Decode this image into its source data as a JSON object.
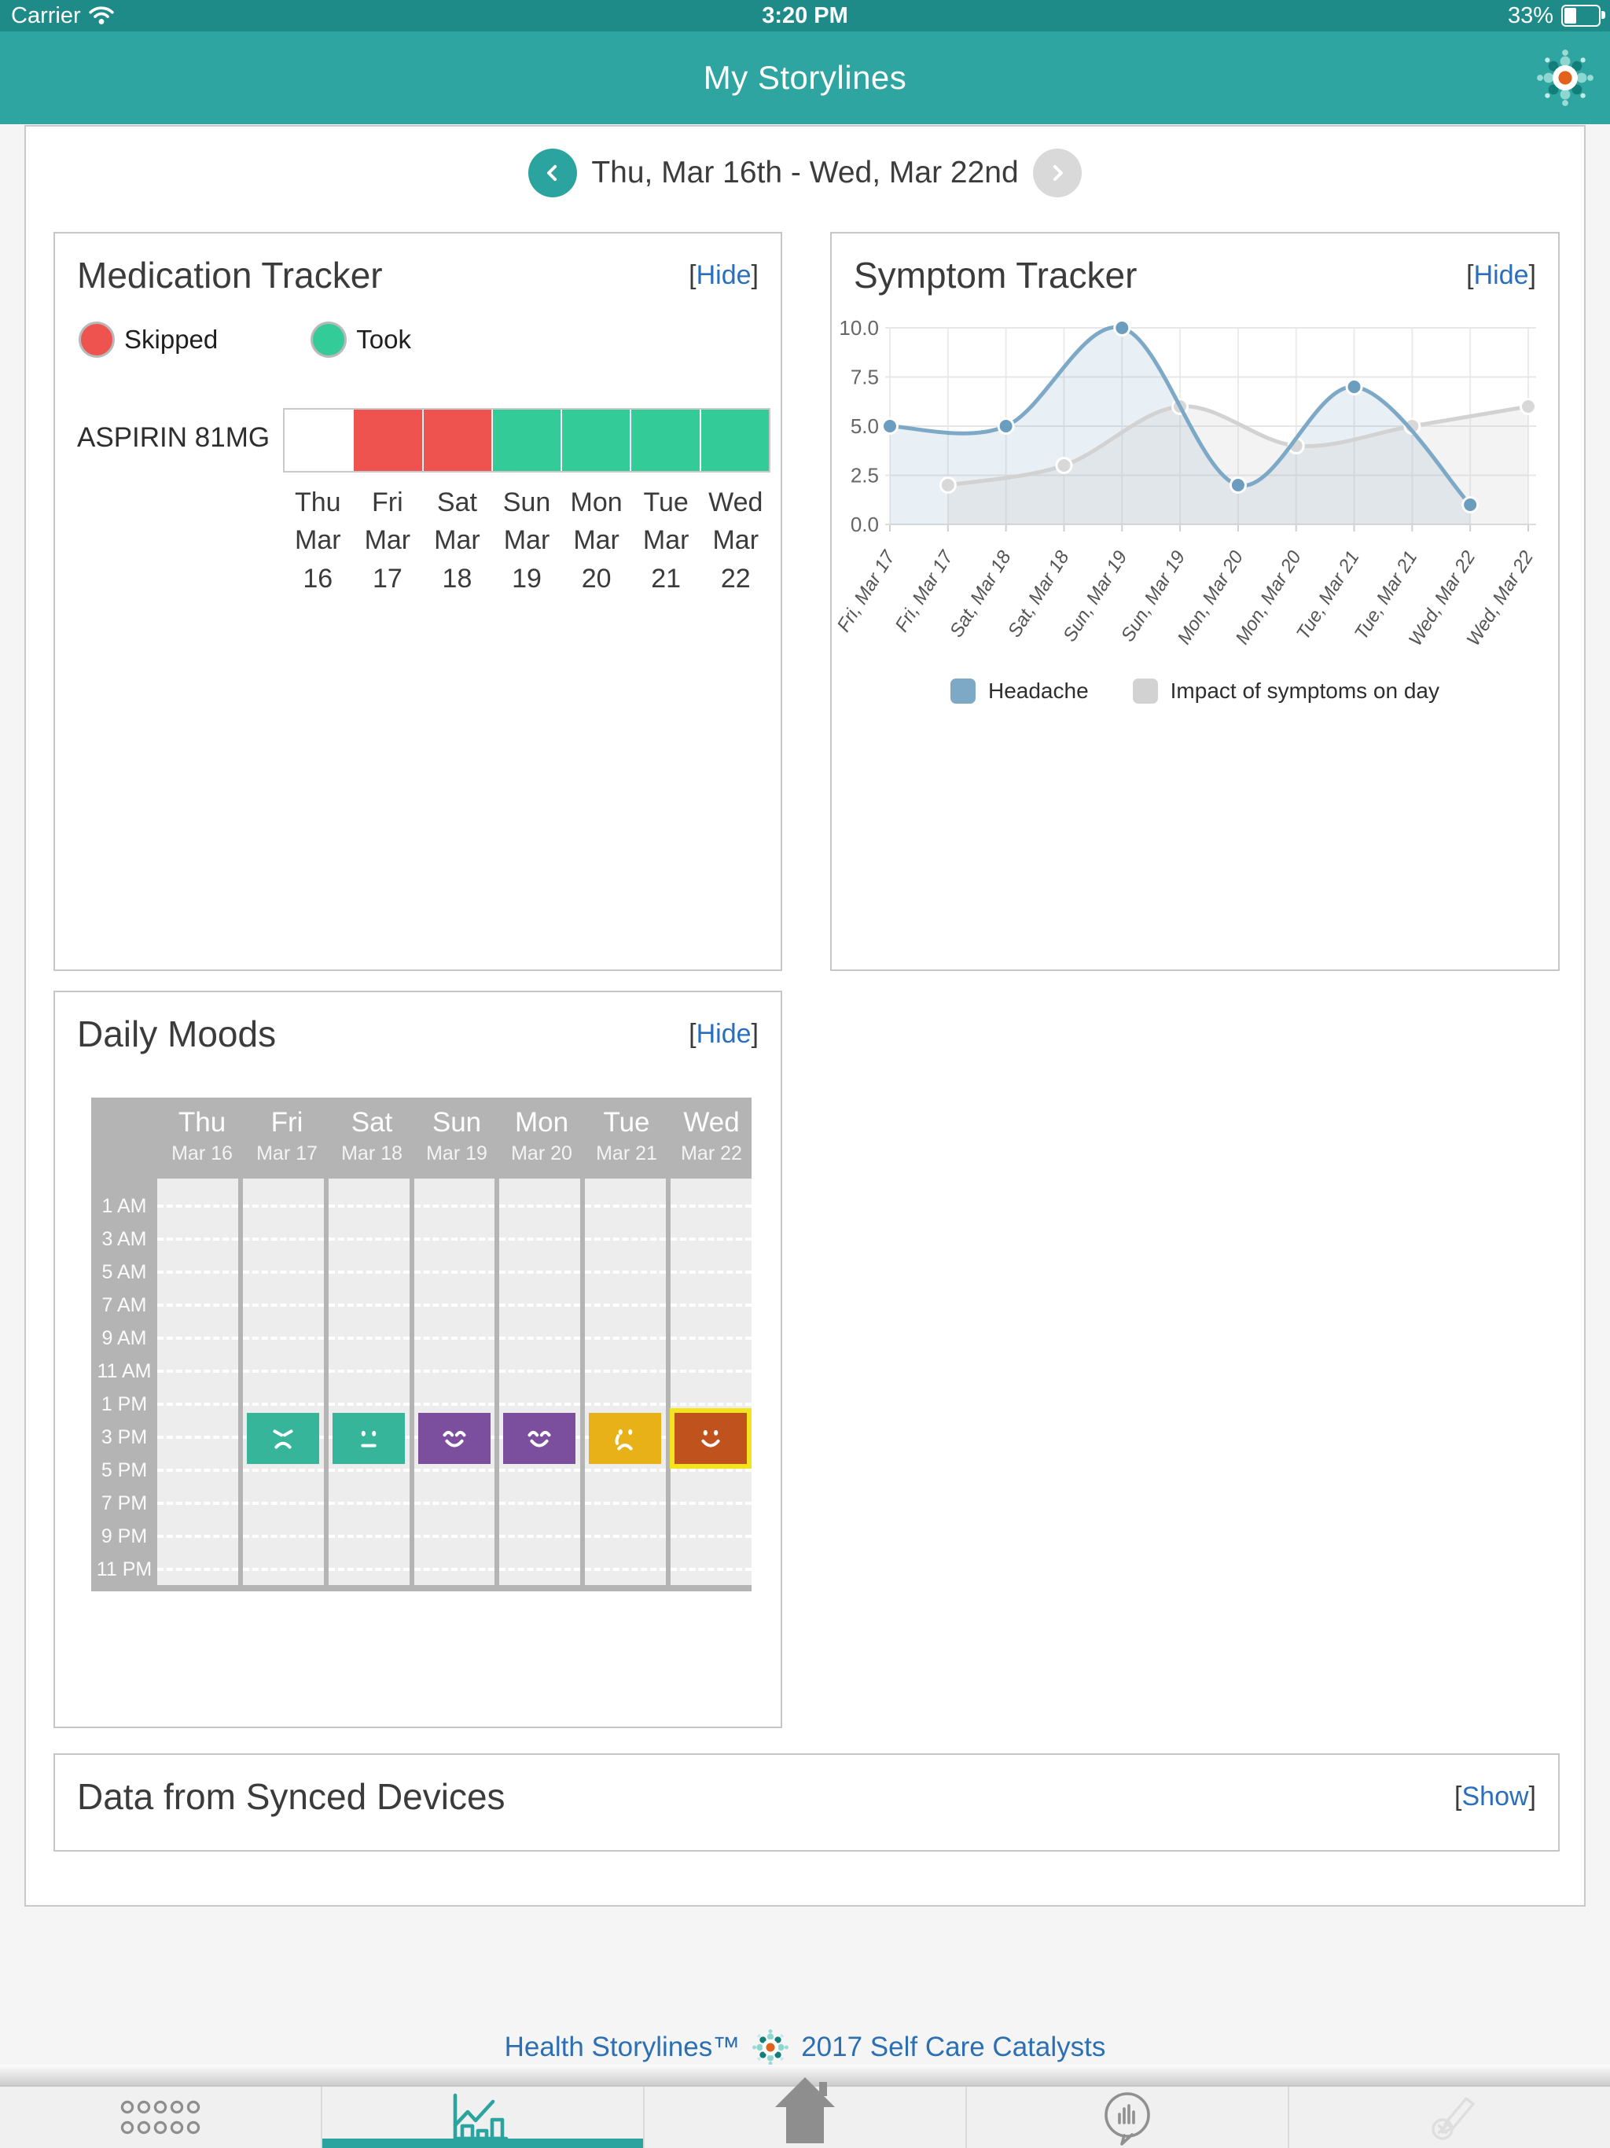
{
  "status_bar": {
    "carrier": "Carrier",
    "time": "3:20 PM",
    "battery_percent": "33%"
  },
  "header": {
    "title": "My Storylines"
  },
  "date_nav": {
    "label": "Thu, Mar 16th - Wed, Mar 22nd"
  },
  "medication_tracker": {
    "title": "Medication Tracker",
    "hide": {
      "open": "[",
      "label": "Hide",
      "close": "]"
    },
    "legend": [
      {
        "label": "Skipped",
        "color": "#ef5350"
      },
      {
        "label": "Took",
        "color": "#33cb98"
      }
    ],
    "status_colors": {
      "none": "#ffffff",
      "skipped": "#ef5350",
      "took": "#33cb98"
    },
    "days": [
      [
        "Thu",
        "Mar",
        "16"
      ],
      [
        "Fri",
        "Mar",
        "17"
      ],
      [
        "Sat",
        "Mar",
        "18"
      ],
      [
        "Sun",
        "Mar",
        "19"
      ],
      [
        "Mon",
        "Mar",
        "20"
      ],
      [
        "Tue",
        "Mar",
        "21"
      ],
      [
        "Wed",
        "Mar",
        "22"
      ]
    ],
    "rows": [
      {
        "name": "ASPIRIN 81MG",
        "statuses": [
          "none",
          "skipped",
          "skipped",
          "took",
          "took",
          "took",
          "took"
        ]
      }
    ]
  },
  "symptom_tracker": {
    "title": "Symptom Tracker",
    "hide": {
      "open": "[",
      "label": "Hide",
      "close": "]"
    }
  },
  "chart_data": {
    "type": "line",
    "title": "Symptom Tracker",
    "xlabel": "",
    "ylabel": "",
    "ylim": [
      0,
      10
    ],
    "grid": true,
    "legend_position": "bottom",
    "yticks": [
      {
        "v": 0,
        "label": "0.0"
      },
      {
        "v": 2.5,
        "label": "2.5"
      },
      {
        "v": 5,
        "label": "5.0"
      },
      {
        "v": 7.5,
        "label": "7.5"
      },
      {
        "v": 10,
        "label": "10.0"
      }
    ],
    "x_labels": [
      "Fri, Mar 17",
      "Fri, Mar 17",
      "Sat, Mar 18",
      "Sat, Mar 18",
      "Sun, Mar 19",
      "Sun, Mar 19",
      "Mon, Mar 20",
      "Mon, Mar 20",
      "Tue, Mar 21",
      "Tue, Mar 21",
      "Wed, Mar 22",
      "Wed, Mar 22"
    ],
    "series": [
      {
        "name": "Headache",
        "color": "#7da9c6",
        "fill": "rgba(125,169,198,0.18)",
        "dot_fill": "#6b9dbf",
        "x_indices": [
          0,
          2,
          4,
          6,
          8,
          10
        ],
        "values": [
          5,
          5,
          10,
          2,
          7,
          1
        ]
      },
      {
        "name": "Impact of symptoms on day",
        "color": "#d2d2d2",
        "fill": "rgba(200,200,200,0.22)",
        "dot_fill": "#d8d8d8",
        "x_indices": [
          1,
          3,
          5,
          7,
          9,
          11
        ],
        "values": [
          2,
          3,
          6,
          4,
          5,
          6
        ]
      }
    ]
  },
  "daily_moods": {
    "title": "Daily Moods",
    "hide": {
      "open": "[",
      "label": "Hide",
      "close": "]"
    },
    "days": [
      {
        "dow": "Thu",
        "date": "Mar 16"
      },
      {
        "dow": "Fri",
        "date": "Mar 17"
      },
      {
        "dow": "Sat",
        "date": "Mar 18"
      },
      {
        "dow": "Sun",
        "date": "Mar 19"
      },
      {
        "dow": "Mon",
        "date": "Mar 20"
      },
      {
        "dow": "Tue",
        "date": "Mar 21"
      },
      {
        "dow": "Wed",
        "date": "Mar 22"
      }
    ],
    "times": [
      "1 AM",
      "3 AM",
      "5 AM",
      "7 AM",
      "9 AM",
      "11 AM",
      "1 PM",
      "3 PM",
      "5 PM",
      "7 PM",
      "9 PM",
      "11 PM"
    ],
    "entries": [
      {
        "day": "Fri",
        "col": 1,
        "mood": "angry",
        "color": "#36b59b",
        "selected": false
      },
      {
        "day": "Sat",
        "col": 2,
        "mood": "neutral",
        "color": "#36b59b",
        "selected": false
      },
      {
        "day": "Sun",
        "col": 3,
        "mood": "happy",
        "color": "#7b4f9d",
        "selected": false
      },
      {
        "day": "Mon",
        "col": 4,
        "mood": "happy",
        "color": "#7b4f9d",
        "selected": false
      },
      {
        "day": "Tue",
        "col": 5,
        "mood": "crying",
        "color": "#e8b117",
        "selected": false
      },
      {
        "day": "Wed",
        "col": 6,
        "mood": "smile",
        "color": "#c0531d",
        "selected": true
      }
    ],
    "selected_outline": "#f3e51d"
  },
  "synced_devices": {
    "title": "Data from Synced Devices",
    "show": {
      "open": "[",
      "label": "Show",
      "close": "]"
    }
  },
  "footer": {
    "brand": "Health Storylines™",
    "credits": "2017 Self Care Catalysts"
  },
  "tab_bar": {
    "active_color": "#2ba49f",
    "tabs": [
      {
        "name": "apps",
        "active": false
      },
      {
        "name": "my-storylines",
        "active": true
      },
      {
        "name": "home",
        "active": false
      },
      {
        "name": "community",
        "active": false
      },
      {
        "name": "journal",
        "active": false
      }
    ]
  }
}
